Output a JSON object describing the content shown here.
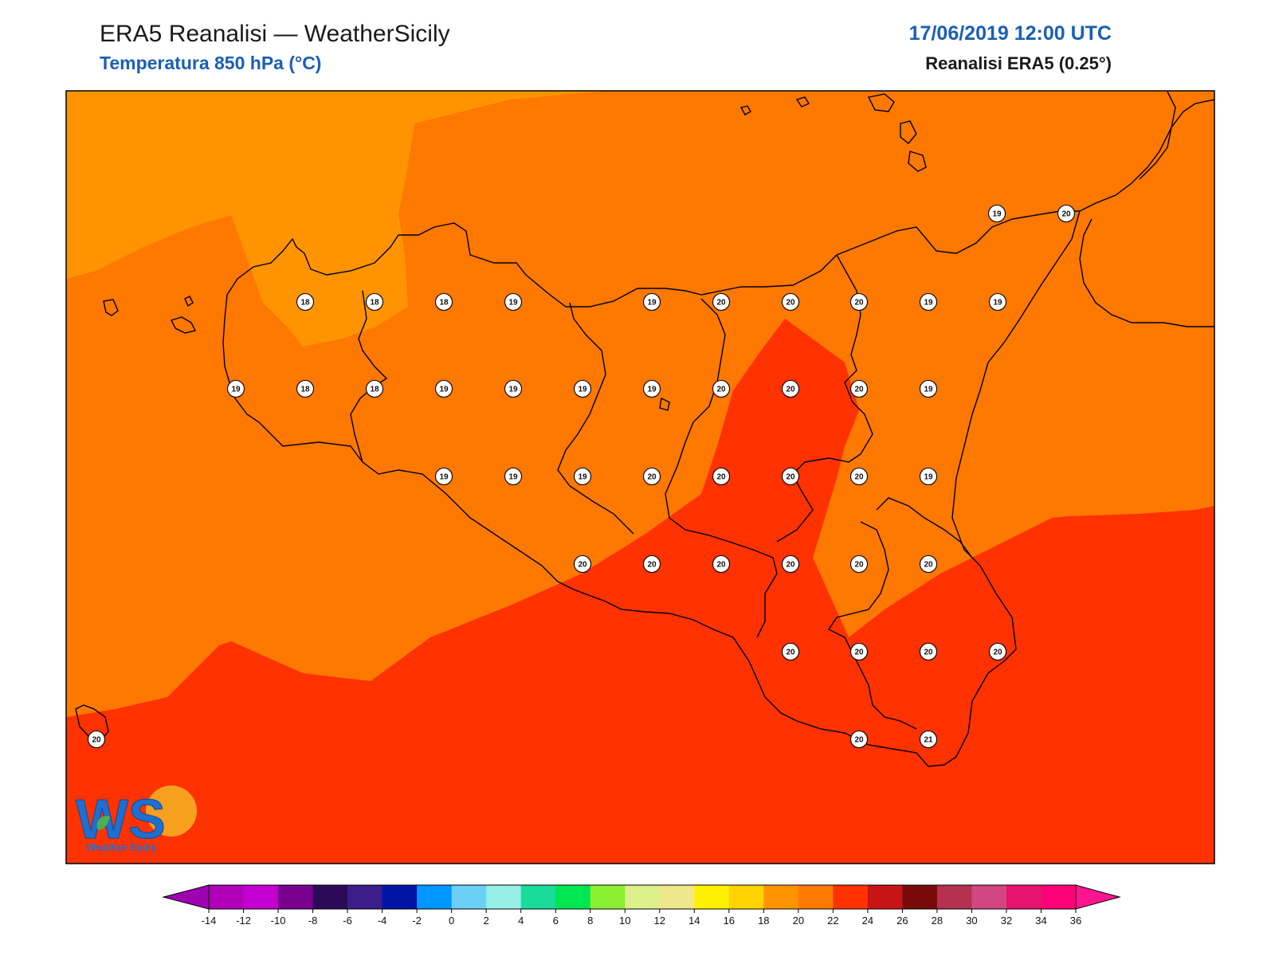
{
  "header": {
    "title": "ERA5 Reanalisi — WeatherSicily",
    "subtitle": "Temperatura 850 hPa (°C)",
    "datetime": "17/06/2019 12:00 UTC",
    "source": "Reanalisi ERA5 (0.25°)"
  },
  "logo": {
    "text": "Weather Sicily",
    "mark": "WS"
  },
  "colors": {
    "t16_18": "#ff9400",
    "t18_20": "#ff7800",
    "t20_22": "#ff3200",
    "coast": "#000000",
    "label_fill": "#ffffff"
  },
  "colorbar": {
    "ticks": [
      "-14",
      "-12",
      "-10",
      "-8",
      "-6",
      "-4",
      "-2",
      "0",
      "2",
      "4",
      "6",
      "8",
      "10",
      "12",
      "14",
      "16",
      "18",
      "20",
      "22",
      "24",
      "26",
      "28",
      "30",
      "32",
      "34",
      "36"
    ],
    "colors": [
      "#b000b8",
      "#c400d0",
      "#7a0090",
      "#2c0a5a",
      "#3c1e8a",
      "#0014a8",
      "#0096ff",
      "#6ccff6",
      "#96f0e8",
      "#19dc9a",
      "#00e650",
      "#8cf032",
      "#dcf08c",
      "#f0e68c",
      "#fff000",
      "#ffd200",
      "#ff9400",
      "#ff7800",
      "#ff3200",
      "#c81414",
      "#780a0a",
      "#b43250",
      "#d24682",
      "#e6146e",
      "#ff0078"
    ],
    "extend_min_color": "#a000b4",
    "extend_max_color": "#ff1490"
  },
  "station_values": [
    "19",
    "20",
    "18",
    "18",
    "18",
    "19",
    "19",
    "20",
    "20",
    "20",
    "19",
    "19",
    "19",
    "18",
    "18",
    "19",
    "19",
    "19",
    "19",
    "20",
    "20",
    "20",
    "19",
    "19",
    "19",
    "19",
    "20",
    "20",
    "20",
    "20",
    "19",
    "20",
    "20",
    "20",
    "20",
    "20",
    "20",
    "20",
    "20",
    "20",
    "20",
    "20",
    "20",
    "21"
  ]
}
